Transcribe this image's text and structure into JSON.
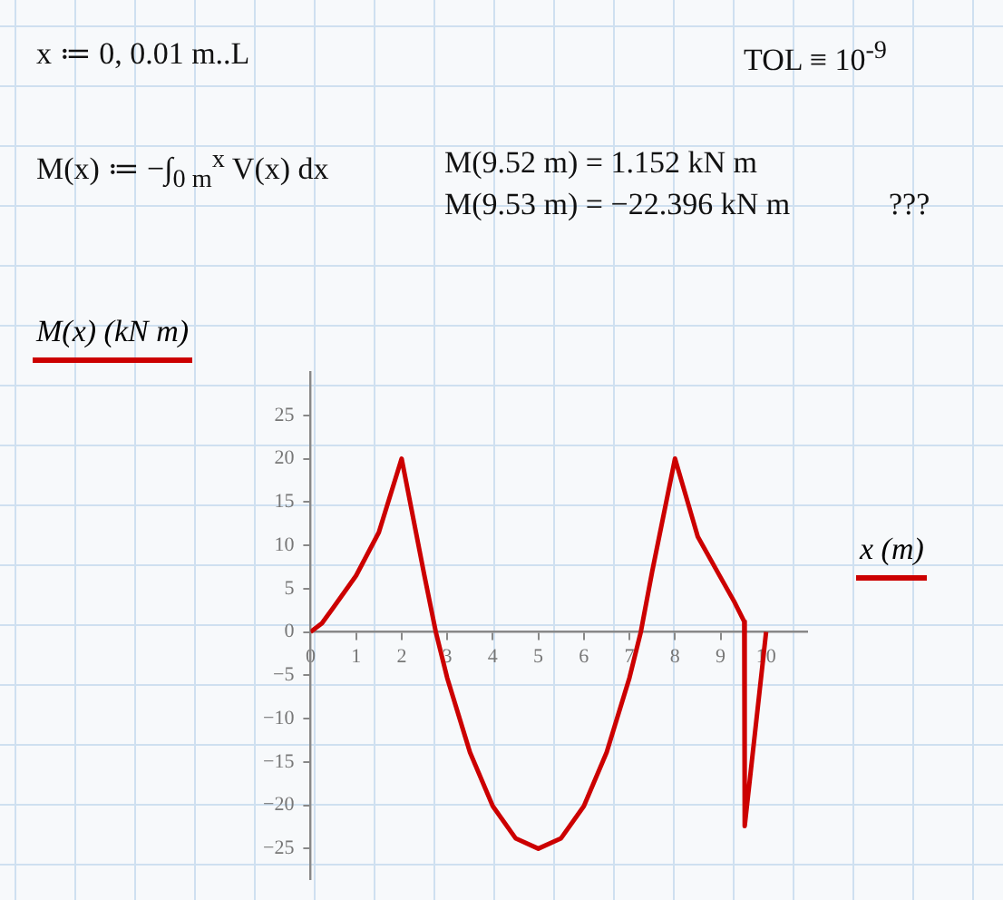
{
  "chart_data": {
    "type": "line",
    "ylabel": "M(x)  (kN m)",
    "xlabel": "x  (m)",
    "annotations": [
      "x ≔ 0, 0.01 m..L",
      "TOL ≡ 10$^{-9}$",
      "M(x) ≔ −∫$_{0 m}$$^{x}$ V(x) dx",
      "M(9.52 m) = 1.152 kN m",
      "M(9.53 m) = −22.396 kN m",
      "???"
    ],
    "series": [
      {
        "color": "#cc0000",
        "x": [
          0,
          0.25,
          0.5,
          1,
          1.5,
          2,
          2.5,
          2.75,
          3,
          3.5,
          4,
          4.5,
          5,
          5.5,
          6,
          6.5,
          7,
          7.25,
          7.5,
          8,
          8.5,
          9,
          9.3,
          9.52,
          9.53,
          10
        ],
        "values": [
          0,
          1,
          2.8,
          6.5,
          11.5,
          20,
          6.5,
          0,
          -5.3,
          -13.9,
          -20.1,
          -23.8,
          -25,
          -23.8,
          -20.1,
          -13.9,
          -5.3,
          0,
          7,
          20,
          11,
          6.3,
          3.5,
          1.2,
          -22.4,
          0
        ]
      }
    ],
    "xlim": [
      0,
      10.9
    ],
    "ylim": [
      -28.5,
      30
    ],
    "xticks": [
      0,
      1,
      2,
      3,
      4,
      5,
      6,
      7,
      8,
      9,
      10
    ],
    "yticks": [
      {
        "value": -25,
        "label": "−25"
      },
      {
        "value": -20,
        "label": "−20"
      },
      {
        "value": -15,
        "label": "−15"
      },
      {
        "value": -10,
        "label": "−10"
      },
      {
        "value": -5,
        "label": "−5"
      },
      0,
      5,
      10,
      15,
      20,
      25
    ],
    "grid": false,
    "legend": false,
    "marker": "none",
    "line_style": "solid"
  }
}
